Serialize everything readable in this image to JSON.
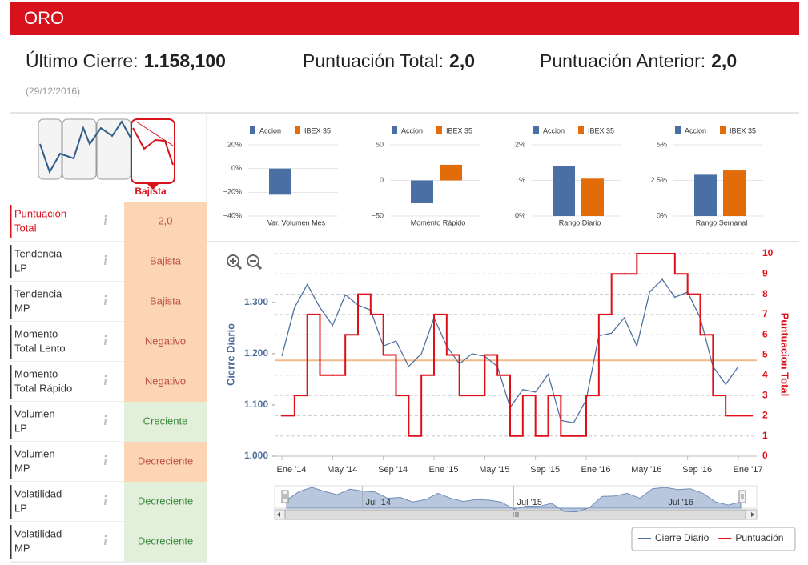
{
  "header": {
    "title": "ORO"
  },
  "summary": {
    "items": [
      {
        "label": "Último Cierre:",
        "value": "1.158,100"
      },
      {
        "label": "Puntuación Total:",
        "value": "2,0"
      },
      {
        "label": "Puntuación Anterior:",
        "value": "2,0"
      }
    ],
    "date": "(29/12/2016)"
  },
  "trend_icon": {
    "label": "Bajista"
  },
  "indicators": [
    {
      "label": [
        "Puntuación",
        "Total"
      ],
      "value": "2,0",
      "highlight": true,
      "background": "#fcd5b5",
      "color": "#c0504d"
    },
    {
      "label": [
        "Tendencia",
        "LP"
      ],
      "value": "Bajista",
      "background": "#fcd5b5",
      "color": "#c0504d"
    },
    {
      "label": [
        "Tendencia",
        "MP"
      ],
      "value": "Bajista",
      "background": "#fcd5b5",
      "color": "#c0504d"
    },
    {
      "label": [
        "Momento",
        "Total Lento"
      ],
      "value": "Negativo",
      "background": "#fcd5b5",
      "color": "#c0504d"
    },
    {
      "label": [
        "Momento",
        "Total Rápido"
      ],
      "value": "Negativo",
      "background": "#fcd5b5",
      "color": "#c0504d"
    },
    {
      "label": [
        "Volumen",
        "LP"
      ],
      "value": "Creciente",
      "background": "#e2efda",
      "color": "#3a8a3a"
    },
    {
      "label": [
        "Volumen",
        "MP"
      ],
      "value": "Decreciente",
      "background": "#fcd5b5",
      "color": "#c0504d"
    },
    {
      "label": [
        "Volatilidad",
        "LP"
      ],
      "value": "Decreciente",
      "background": "#e2efda",
      "color": "#3a8a3a"
    },
    {
      "label": [
        "Volatilidad",
        "MP"
      ],
      "value": "Decreciente",
      "background": "#e2efda",
      "color": "#3a8a3a"
    }
  ],
  "chart_data": [
    {
      "type": "bar",
      "categories": [
        "Var. Volumen Mes"
      ],
      "series": [
        {
          "name": "Accion",
          "color": "#4a6fa5",
          "values": [
            -22
          ]
        },
        {
          "name": "IBEX 35",
          "color": "#e36c0a",
          "values": [
            null
          ]
        }
      ],
      "ylim": [
        -40,
        20
      ],
      "yticks": [
        {
          "value": 20,
          "label": "20%"
        },
        {
          "value": 0,
          "label": "0%"
        },
        {
          "value": -20,
          "label": "−20%"
        },
        {
          "value": -40,
          "label": "−40%"
        }
      ],
      "grid": true
    },
    {
      "type": "bar",
      "categories": [
        "Momento Rápido"
      ],
      "series": [
        {
          "name": "Accion",
          "color": "#4a6fa5",
          "values": [
            -32
          ]
        },
        {
          "name": "IBEX 35",
          "color": "#e36c0a",
          "values": [
            22
          ]
        }
      ],
      "ylim": [
        -50,
        50
      ],
      "yticks": [
        50,
        0,
        {
          "value": -50,
          "label": "−50"
        }
      ],
      "grid": true
    },
    {
      "type": "bar",
      "categories": [
        "Rango Diario"
      ],
      "series": [
        {
          "name": "Accion",
          "color": "#4a6fa5",
          "values": [
            1.4
          ]
        },
        {
          "name": "IBEX 35",
          "color": "#e36c0a",
          "values": [
            1.05
          ]
        }
      ],
      "ylim": [
        0,
        2
      ],
      "yticks": [
        {
          "value": 2,
          "label": "2%"
        },
        {
          "value": 1,
          "label": "1%"
        },
        {
          "value": 0,
          "label": "0%"
        }
      ],
      "grid": true
    },
    {
      "type": "bar",
      "categories": [
        "Rango Semanal"
      ],
      "series": [
        {
          "name": "Accion",
          "color": "#4a6fa5",
          "values": [
            2.9
          ]
        },
        {
          "name": "IBEX 35",
          "color": "#e36c0a",
          "values": [
            3.2
          ]
        }
      ],
      "ylim": [
        0,
        5
      ],
      "yticks": [
        {
          "value": 5,
          "label": "5%"
        },
        {
          "value": 2.5,
          "label": "2.5%"
        },
        {
          "value": 0,
          "label": "0%"
        }
      ],
      "grid": true
    },
    {
      "type": "line",
      "x": [
        "2014-01",
        "2014-02",
        "2014-03",
        "2014-04",
        "2014-05",
        "2014-06",
        "2014-07",
        "2014-08",
        "2014-09",
        "2014-10",
        "2014-11",
        "2014-12",
        "2015-01",
        "2015-02",
        "2015-03",
        "2015-04",
        "2015-05",
        "2015-06",
        "2015-07",
        "2015-08",
        "2015-09",
        "2015-10",
        "2015-11",
        "2015-12",
        "2016-01",
        "2016-02",
        "2016-03",
        "2016-04",
        "2016-05",
        "2016-06",
        "2016-07",
        "2016-08",
        "2016-09",
        "2016-10",
        "2016-11",
        "2016-12",
        "2017-01"
      ],
      "series": [
        {
          "name": "Cierre Diario",
          "color": "#4f72a0",
          "values": [
            1195,
            1290,
            1335,
            1290,
            1255,
            1315,
            1295,
            1285,
            1215,
            1225,
            1175,
            1200,
            1270,
            1215,
            1180,
            1200,
            1195,
            1175,
            1095,
            1130,
            1125,
            1160,
            1070,
            1065,
            1110,
            1235,
            1240,
            1270,
            1215,
            1320,
            1345,
            1310,
            1320,
            1270,
            1175,
            1140,
            1175
          ]
        },
        {
          "name": "Puntuación",
          "color": "#e0101a",
          "axis": "y2",
          "step": true,
          "values": [
            2,
            3,
            7,
            4,
            4,
            6,
            8,
            7,
            5,
            3,
            1,
            4,
            7,
            5,
            3,
            3,
            5,
            4,
            1,
            3,
            1,
            3,
            1,
            1,
            3,
            7,
            9,
            9,
            10,
            10,
            10,
            9,
            8,
            6,
            3,
            2,
            2
          ]
        }
      ],
      "ylabel": "Cierre Diario",
      "y2label": "Puntuacion Total",
      "ylim": [
        1000,
        1395
      ],
      "yticks": [
        {
          "value": 1000,
          "label": "1.000"
        },
        {
          "value": 1100,
          "label": "1.100"
        },
        {
          "value": 1200,
          "label": "1.200"
        },
        {
          "value": 1300,
          "label": "1.300"
        }
      ],
      "y2lim": [
        0,
        10
      ],
      "y2ticks": [
        0,
        1,
        2,
        3,
        4,
        5,
        6,
        7,
        8,
        9,
        10
      ],
      "xticks": [
        {
          "value": "2014-01",
          "label": "Ene '14"
        },
        {
          "value": "2014-05",
          "label": "May '14"
        },
        {
          "value": "2014-09",
          "label": "Sep '14"
        },
        {
          "value": "2015-01",
          "label": "Ene '15"
        },
        {
          "value": "2015-05",
          "label": "May '15"
        },
        {
          "value": "2015-09",
          "label": "Sep '15"
        },
        {
          "value": "2016-01",
          "label": "Ene '16"
        },
        {
          "value": "2016-05",
          "label": "May '16"
        },
        {
          "value": "2016-09",
          "label": "Sep '16"
        },
        {
          "value": "2017-01",
          "label": "Ene '17"
        }
      ],
      "reference_line": {
        "value": 1187,
        "color": "#f0b98a"
      },
      "navigator_ticks": [
        {
          "value": "2014-07",
          "label": "Jul '14"
        },
        {
          "value": "2015-07",
          "label": "Jul '15"
        },
        {
          "value": "2016-07",
          "label": "Jul '16"
        }
      ],
      "grid": true,
      "legend": "bottom-right"
    }
  ]
}
